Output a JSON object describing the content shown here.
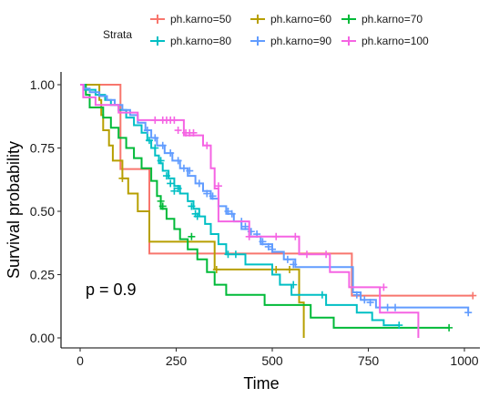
{
  "chart_data": {
    "type": "line",
    "title": "",
    "xlabel": "Time",
    "ylabel": "Survival probability",
    "xlim": [
      0,
      1022
    ],
    "ylim": [
      0,
      1
    ],
    "x_ticks": [
      "0",
      "250",
      "500",
      "750",
      "1000"
    ],
    "y_ticks": [
      "0.00",
      "0.25",
      "0.50",
      "0.75",
      "1.00"
    ],
    "grid": false,
    "annotation": "p = 0.9",
    "legend": {
      "title": "Strata",
      "placement": "top"
    },
    "series": [
      {
        "name": "ph.karno=50",
        "color": "#F8766D",
        "steps": [
          [
            0,
            1
          ],
          [
            105,
            1
          ],
          [
            105,
            0.667
          ],
          [
            180,
            0.667
          ],
          [
            180,
            0.333
          ],
          [
            707,
            0.333
          ],
          [
            707,
            0.167
          ],
          [
            1022,
            0.167
          ]
        ],
        "censors": [
          [
            1022,
            0.167
          ]
        ]
      },
      {
        "name": "ph.karno=60",
        "color": "#B79F00",
        "steps": [
          [
            0,
            1
          ],
          [
            50,
            1
          ],
          [
            50,
            0.94
          ],
          [
            55,
            0.94
          ],
          [
            55,
            0.88
          ],
          [
            60,
            0.88
          ],
          [
            60,
            0.82
          ],
          [
            75,
            0.82
          ],
          [
            75,
            0.76
          ],
          [
            85,
            0.76
          ],
          [
            85,
            0.7
          ],
          [
            110,
            0.7
          ],
          [
            110,
            0.63
          ],
          [
            125,
            0.63
          ],
          [
            125,
            0.57
          ],
          [
            150,
            0.57
          ],
          [
            150,
            0.5
          ],
          [
            180,
            0.5
          ],
          [
            180,
            0.38
          ],
          [
            350,
            0.38
          ],
          [
            350,
            0.27
          ],
          [
            570,
            0.27
          ],
          [
            570,
            0.14
          ],
          [
            582,
            0.14
          ],
          [
            582,
            0
          ]
        ],
        "censors": [
          [
            110,
            0.63
          ],
          [
            355,
            0.27
          ],
          [
            510,
            0.27
          ],
          [
            545,
            0.27
          ]
        ]
      },
      {
        "name": "ph.karno=70",
        "color": "#00BA38",
        "steps": [
          [
            0,
            1
          ],
          [
            15,
            1
          ],
          [
            15,
            0.96
          ],
          [
            25,
            0.96
          ],
          [
            25,
            0.91
          ],
          [
            60,
            0.91
          ],
          [
            60,
            0.87
          ],
          [
            80,
            0.87
          ],
          [
            80,
            0.83
          ],
          [
            100,
            0.83
          ],
          [
            100,
            0.79
          ],
          [
            120,
            0.79
          ],
          [
            120,
            0.75
          ],
          [
            140,
            0.75
          ],
          [
            140,
            0.71
          ],
          [
            160,
            0.71
          ],
          [
            160,
            0.67
          ],
          [
            185,
            0.67
          ],
          [
            185,
            0.62
          ],
          [
            200,
            0.62
          ],
          [
            200,
            0.56
          ],
          [
            210,
            0.56
          ],
          [
            210,
            0.51
          ],
          [
            225,
            0.51
          ],
          [
            225,
            0.47
          ],
          [
            245,
            0.47
          ],
          [
            245,
            0.43
          ],
          [
            260,
            0.43
          ],
          [
            260,
            0.39
          ],
          [
            280,
            0.39
          ],
          [
            280,
            0.35
          ],
          [
            305,
            0.35
          ],
          [
            305,
            0.31
          ],
          [
            330,
            0.31
          ],
          [
            330,
            0.26
          ],
          [
            350,
            0.26
          ],
          [
            350,
            0.21
          ],
          [
            380,
            0.21
          ],
          [
            380,
            0.17
          ],
          [
            480,
            0.17
          ],
          [
            480,
            0.13
          ],
          [
            600,
            0.13
          ],
          [
            600,
            0.08
          ],
          [
            660,
            0.08
          ],
          [
            660,
            0.04
          ],
          [
            960,
            0.04
          ]
        ],
        "censors": [
          [
            210,
            0.54
          ],
          [
            215,
            0.52
          ],
          [
            290,
            0.4
          ],
          [
            960,
            0.04
          ]
        ]
      },
      {
        "name": "ph.karno=80",
        "color": "#00BFC4",
        "steps": [
          [
            0,
            1
          ],
          [
            10,
            1
          ],
          [
            10,
            0.98
          ],
          [
            40,
            0.98
          ],
          [
            40,
            0.96
          ],
          [
            65,
            0.96
          ],
          [
            65,
            0.94
          ],
          [
            80,
            0.94
          ],
          [
            80,
            0.92
          ],
          [
            100,
            0.92
          ],
          [
            100,
            0.9
          ],
          [
            120,
            0.9
          ],
          [
            120,
            0.87
          ],
          [
            140,
            0.87
          ],
          [
            140,
            0.84
          ],
          [
            160,
            0.84
          ],
          [
            160,
            0.81
          ],
          [
            175,
            0.81
          ],
          [
            175,
            0.78
          ],
          [
            185,
            0.78
          ],
          [
            185,
            0.75
          ],
          [
            195,
            0.75
          ],
          [
            195,
            0.72
          ],
          [
            205,
            0.72
          ],
          [
            205,
            0.69
          ],
          [
            215,
            0.69
          ],
          [
            215,
            0.66
          ],
          [
            230,
            0.66
          ],
          [
            230,
            0.63
          ],
          [
            245,
            0.63
          ],
          [
            245,
            0.6
          ],
          [
            260,
            0.6
          ],
          [
            260,
            0.57
          ],
          [
            280,
            0.57
          ],
          [
            280,
            0.54
          ],
          [
            295,
            0.54
          ],
          [
            295,
            0.51
          ],
          [
            310,
            0.51
          ],
          [
            310,
            0.48
          ],
          [
            325,
            0.48
          ],
          [
            325,
            0.45
          ],
          [
            340,
            0.45
          ],
          [
            340,
            0.41
          ],
          [
            360,
            0.41
          ],
          [
            360,
            0.37
          ],
          [
            380,
            0.37
          ],
          [
            380,
            0.33
          ],
          [
            430,
            0.33
          ],
          [
            430,
            0.29
          ],
          [
            500,
            0.29
          ],
          [
            500,
            0.25
          ],
          [
            520,
            0.25
          ],
          [
            520,
            0.21
          ],
          [
            550,
            0.21
          ],
          [
            550,
            0.17
          ],
          [
            640,
            0.17
          ],
          [
            640,
            0.13
          ],
          [
            720,
            0.13
          ],
          [
            720,
            0.1
          ],
          [
            760,
            0.1
          ],
          [
            760,
            0.07
          ],
          [
            790,
            0.07
          ],
          [
            790,
            0.05
          ],
          [
            830,
            0.05
          ]
        ],
        "censors": [
          [
            180,
            0.78
          ],
          [
            195,
            0.75
          ],
          [
            210,
            0.7
          ],
          [
            225,
            0.64
          ],
          [
            235,
            0.61
          ],
          [
            245,
            0.58
          ],
          [
            255,
            0.59
          ],
          [
            290,
            0.52
          ],
          [
            300,
            0.49
          ],
          [
            305,
            0.48
          ],
          [
            385,
            0.33
          ],
          [
            405,
            0.33
          ],
          [
            555,
            0.21
          ],
          [
            630,
            0.17
          ],
          [
            830,
            0.05
          ]
        ]
      },
      {
        "name": "ph.karno=90",
        "color": "#619CFF",
        "steps": [
          [
            0,
            1
          ],
          [
            10,
            1
          ],
          [
            10,
            0.985
          ],
          [
            25,
            0.985
          ],
          [
            25,
            0.97
          ],
          [
            50,
            0.97
          ],
          [
            50,
            0.955
          ],
          [
            70,
            0.955
          ],
          [
            70,
            0.94
          ],
          [
            90,
            0.94
          ],
          [
            90,
            0.92
          ],
          [
            110,
            0.92
          ],
          [
            110,
            0.9
          ],
          [
            130,
            0.9
          ],
          [
            130,
            0.88
          ],
          [
            150,
            0.88
          ],
          [
            150,
            0.85
          ],
          [
            170,
            0.85
          ],
          [
            170,
            0.82
          ],
          [
            185,
            0.82
          ],
          [
            185,
            0.79
          ],
          [
            200,
            0.79
          ],
          [
            200,
            0.76
          ],
          [
            220,
            0.76
          ],
          [
            220,
            0.73
          ],
          [
            240,
            0.73
          ],
          [
            240,
            0.7
          ],
          [
            260,
            0.7
          ],
          [
            260,
            0.67
          ],
          [
            280,
            0.67
          ],
          [
            280,
            0.64
          ],
          [
            300,
            0.64
          ],
          [
            300,
            0.61
          ],
          [
            320,
            0.61
          ],
          [
            320,
            0.58
          ],
          [
            340,
            0.58
          ],
          [
            340,
            0.55
          ],
          [
            360,
            0.55
          ],
          [
            360,
            0.52
          ],
          [
            380,
            0.52
          ],
          [
            380,
            0.49
          ],
          [
            400,
            0.49
          ],
          [
            400,
            0.46
          ],
          [
            420,
            0.46
          ],
          [
            420,
            0.43
          ],
          [
            440,
            0.43
          ],
          [
            440,
            0.4
          ],
          [
            470,
            0.4
          ],
          [
            470,
            0.37
          ],
          [
            500,
            0.37
          ],
          [
            500,
            0.34
          ],
          [
            530,
            0.34
          ],
          [
            530,
            0.31
          ],
          [
            560,
            0.31
          ],
          [
            560,
            0.28
          ],
          [
            710,
            0.28
          ],
          [
            710,
            0.18
          ],
          [
            730,
            0.18
          ],
          [
            730,
            0.15
          ],
          [
            770,
            0.15
          ],
          [
            770,
            0.12
          ],
          [
            1010,
            0.12
          ],
          [
            1010,
            0.1
          ]
        ],
        "censors": [
          [
            175,
            0.82
          ],
          [
            195,
            0.79
          ],
          [
            215,
            0.76
          ],
          [
            235,
            0.73
          ],
          [
            255,
            0.7
          ],
          [
            270,
            0.67
          ],
          [
            285,
            0.66
          ],
          [
            310,
            0.61
          ],
          [
            330,
            0.57
          ],
          [
            345,
            0.56
          ],
          [
            385,
            0.5
          ],
          [
            395,
            0.49
          ],
          [
            420,
            0.46
          ],
          [
            430,
            0.44
          ],
          [
            445,
            0.42
          ],
          [
            460,
            0.41
          ],
          [
            475,
            0.38
          ],
          [
            490,
            0.36
          ],
          [
            500,
            0.35
          ],
          [
            540,
            0.31
          ],
          [
            555,
            0.29
          ],
          [
            720,
            0.17
          ],
          [
            740,
            0.15
          ],
          [
            755,
            0.14
          ],
          [
            800,
            0.12
          ],
          [
            820,
            0.12
          ],
          [
            1010,
            0.1
          ]
        ]
      },
      {
        "name": "ph.karno=100",
        "color": "#F564E3",
        "steps": [
          [
            0,
            1
          ],
          [
            8,
            1
          ],
          [
            8,
            0.95
          ],
          [
            40,
            0.95
          ],
          [
            40,
            0.92
          ],
          [
            100,
            0.92
          ],
          [
            100,
            0.89
          ],
          [
            150,
            0.89
          ],
          [
            150,
            0.86
          ],
          [
            270,
            0.86
          ],
          [
            270,
            0.8
          ],
          [
            320,
            0.8
          ],
          [
            320,
            0.76
          ],
          [
            340,
            0.76
          ],
          [
            340,
            0.67
          ],
          [
            350,
            0.67
          ],
          [
            350,
            0.59
          ],
          [
            360,
            0.59
          ],
          [
            360,
            0.46
          ],
          [
            440,
            0.46
          ],
          [
            440,
            0.4
          ],
          [
            570,
            0.4
          ],
          [
            570,
            0.33
          ],
          [
            650,
            0.33
          ],
          [
            650,
            0.26
          ],
          [
            700,
            0.26
          ],
          [
            700,
            0.2
          ],
          [
            780,
            0.2
          ],
          [
            780,
            0.1
          ],
          [
            880,
            0.1
          ],
          [
            880,
            0
          ]
        ],
        "censors": [
          [
            195,
            0.86
          ],
          [
            215,
            0.86
          ],
          [
            225,
            0.86
          ],
          [
            235,
            0.86
          ],
          [
            245,
            0.86
          ],
          [
            255,
            0.82
          ],
          [
            275,
            0.81
          ],
          [
            285,
            0.81
          ],
          [
            295,
            0.81
          ],
          [
            330,
            0.76
          ],
          [
            360,
            0.6
          ],
          [
            440,
            0.4
          ],
          [
            510,
            0.4
          ],
          [
            560,
            0.4
          ],
          [
            590,
            0.33
          ],
          [
            640,
            0.33
          ],
          [
            790,
            0.2
          ]
        ]
      }
    ]
  }
}
